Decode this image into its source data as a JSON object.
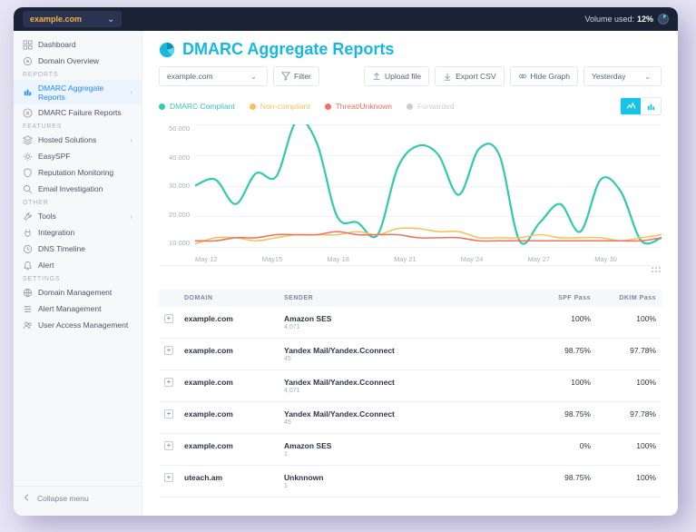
{
  "topbar": {
    "domain": "example.com",
    "volume_label": "Volume used:",
    "volume_pct": "12%"
  },
  "sidebar": {
    "groups": [
      {
        "header": null,
        "items": [
          {
            "label": "Dashboard",
            "icon": "grid"
          },
          {
            "label": "Domain Overview",
            "icon": "target"
          }
        ]
      },
      {
        "header": "REPORTS",
        "items": [
          {
            "label": "DMARC Aggregate Reports",
            "icon": "bar",
            "chevron": true,
            "active": true
          },
          {
            "label": "DMARC Failure Reports",
            "icon": "x"
          }
        ]
      },
      {
        "header": "FEATURES",
        "items": [
          {
            "label": "Hosted Solutions",
            "icon": "layers",
            "chevron": true
          },
          {
            "label": "EasySPF",
            "icon": "cog"
          },
          {
            "label": "Reputation Monitoring",
            "icon": "shield"
          },
          {
            "label": "Email Investigation",
            "icon": "search"
          }
        ]
      },
      {
        "header": "OTHER",
        "items": [
          {
            "label": "Tools",
            "icon": "wrench",
            "chevron": true
          },
          {
            "label": "Integration",
            "icon": "plug"
          },
          {
            "label": "DNS Timeline",
            "icon": "clock"
          },
          {
            "label": "Alert",
            "icon": "bell"
          }
        ]
      },
      {
        "header": "SETTINGS",
        "items": [
          {
            "label": "Domain Management",
            "icon": "globe"
          },
          {
            "label": "Alert Management",
            "icon": "sliders"
          },
          {
            "label": "User Access Management",
            "icon": "users"
          }
        ]
      }
    ],
    "collapse": "Collapse menu"
  },
  "page": {
    "title": "DMARC Aggregate Reports",
    "domain_filter": "example.com",
    "filter_btn": "Filter",
    "upload_btn": "Upload file",
    "export_btn": "Export CSV",
    "hide_graph_btn": "Hide Graph",
    "date_range": "Yesterday"
  },
  "legend": [
    {
      "label": "DMARC Compliant",
      "color": "#34c9b0"
    },
    {
      "label": "Non-compliant",
      "color": "#f5c25a"
    },
    {
      "label": "Threat/Unknown",
      "color": "#f0725d"
    },
    {
      "label": "Forwarded",
      "color": "#c9ced9"
    }
  ],
  "chart": {
    "type": "line",
    "background_color": "#ffffff",
    "grid_color": "#f1f3f8",
    "ylim": [
      10000,
      50000
    ],
    "ytick_step": 10000,
    "ylabels": [
      "50.000",
      "40.000",
      "30.000",
      "20.000",
      "10.000"
    ],
    "xlabels": [
      "May 12",
      "May15",
      "May 18",
      "May 21",
      "May 24",
      "May 27",
      "May 30",
      ""
    ],
    "series": {
      "compliant": {
        "color": "#34c9b0",
        "width": 2.2,
        "points": [
          30000,
          32000,
          24000,
          34000,
          33000,
          51000,
          44000,
          20000,
          18000,
          14000,
          36000,
          43000,
          40000,
          27000,
          42000,
          40000,
          12000,
          18000,
          24000,
          15000,
          32000,
          28000,
          12000,
          13000
        ]
      },
      "noncompliant": {
        "color": "#f5c25a",
        "width": 1.6,
        "points": [
          11000,
          13000,
          13000,
          12000,
          13000,
          14000,
          14000,
          14000,
          15000,
          14000,
          16000,
          16000,
          15000,
          15000,
          13000,
          13000,
          13000,
          14000,
          13000,
          13000,
          13000,
          12000,
          13000,
          14000
        ]
      },
      "threat": {
        "color": "#f0725d",
        "width": 1.6,
        "points": [
          12000,
          12000,
          13000,
          13000,
          14000,
          14000,
          14000,
          15000,
          14000,
          14000,
          14000,
          13000,
          13000,
          13000,
          12000,
          12000,
          12000,
          12000,
          12000,
          12000,
          12000,
          12000,
          12000,
          13000
        ]
      }
    }
  },
  "table": {
    "columns": [
      "DOMAIN",
      "SENDER",
      "SPF Pass",
      "DKIM Pass"
    ],
    "rows": [
      {
        "domain": "example.com",
        "sender": "Amazon SES",
        "count": "4,071",
        "spf": "100%",
        "dkim": "100%"
      },
      {
        "domain": "example.com",
        "sender": "Yandex Mail/Yandex.Cconnect",
        "count": "45",
        "spf": "98.75%",
        "dkim": "97.78%"
      },
      {
        "domain": "example.com",
        "sender": "Yandex Mail/Yandex.Cconnect",
        "count": "4,071",
        "spf": "100%",
        "dkim": "100%"
      },
      {
        "domain": "example.com",
        "sender": "Yandex Mail/Yandex.Cconnect",
        "count": "45",
        "spf": "98.75%",
        "dkim": "97.78%"
      },
      {
        "domain": "example.com",
        "sender": "Amazon SES",
        "count": "1",
        "spf": "0%",
        "dkim": "100%"
      },
      {
        "domain": "uteach.am",
        "sender": "Unknnown",
        "count": "1",
        "spf": "98.75%",
        "dkim": "100%"
      }
    ]
  },
  "colors": {
    "accent": "#18b8dd",
    "toggle_on": "#16c4e8"
  }
}
